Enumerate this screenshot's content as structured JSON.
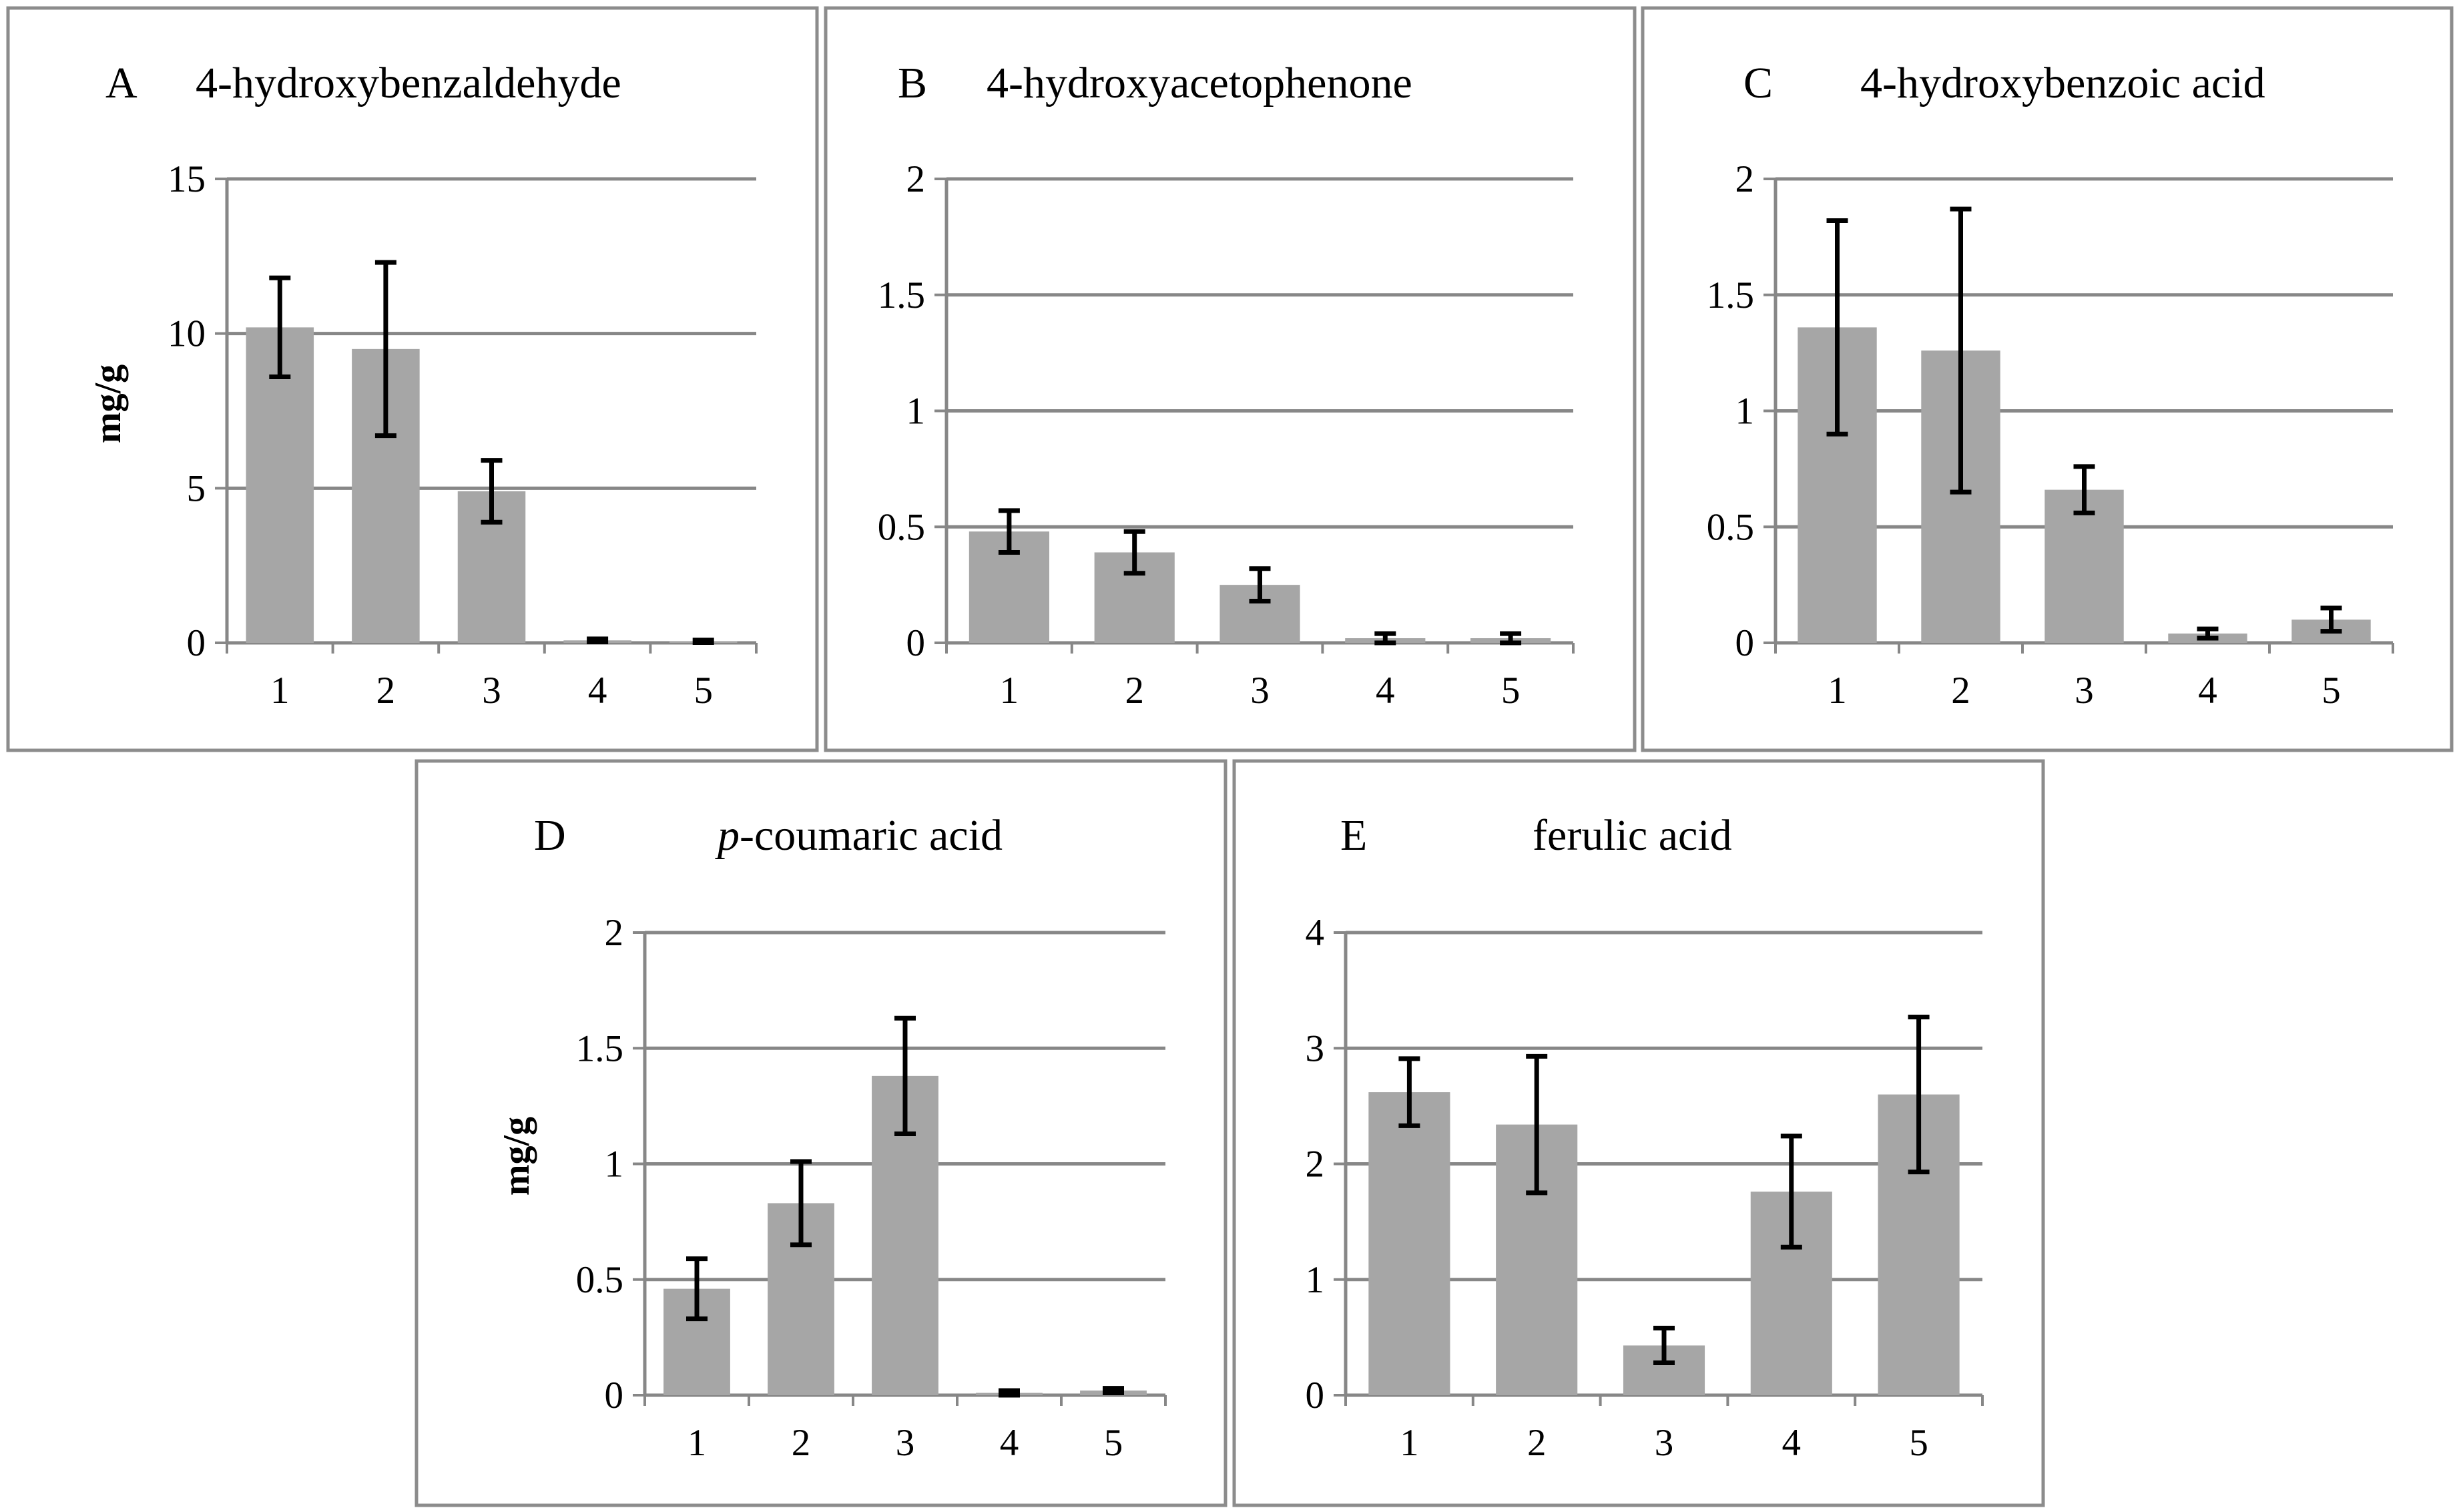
{
  "chart_data": [
    {
      "type": "bar",
      "panel_letter": "A",
      "title_prefix": "",
      "title": "4-hydroxybenzaldehyde",
      "ylabel": "mg/g",
      "xlabel": "",
      "categories": [
        "1",
        "2",
        "3",
        "4",
        "5"
      ],
      "values": [
        10.2,
        9.5,
        4.9,
        0.08,
        0.05
      ],
      "errors": [
        1.6,
        2.8,
        1.0,
        0.05,
        0.04
      ],
      "ylim": [
        0,
        15
      ],
      "yticks": [
        0,
        5,
        10,
        15
      ],
      "grid": true,
      "legend": "none"
    },
    {
      "type": "bar",
      "panel_letter": "B",
      "title_prefix": "",
      "title": "4-hydroxyacetophenone",
      "ylabel": "",
      "xlabel": "",
      "categories": [
        "1",
        "2",
        "3",
        "4",
        "5"
      ],
      "values": [
        0.48,
        0.39,
        0.25,
        0.02,
        0.02
      ],
      "errors": [
        0.09,
        0.09,
        0.07,
        0.02,
        0.02
      ],
      "ylim": [
        0,
        2
      ],
      "yticks": [
        0,
        0.5,
        1,
        1.5,
        2
      ],
      "grid": true,
      "legend": "none"
    },
    {
      "type": "bar",
      "panel_letter": "C",
      "title_prefix": "",
      "title": "4-hydroxybenzoic acid",
      "ylabel": "",
      "xlabel": "",
      "categories": [
        "1",
        "2",
        "3",
        "4",
        "5"
      ],
      "values": [
        1.36,
        1.26,
        0.66,
        0.04,
        0.1
      ],
      "errors": [
        0.46,
        0.61,
        0.1,
        0.02,
        0.05
      ],
      "ylim": [
        0,
        2
      ],
      "yticks": [
        0,
        0.5,
        1,
        1.5,
        2
      ],
      "grid": true,
      "legend": "none"
    },
    {
      "type": "bar",
      "panel_letter": "D",
      "title_prefix": "p",
      "title": "-coumaric acid",
      "ylabel": "mg/g",
      "xlabel": "",
      "categories": [
        "1",
        "2",
        "3",
        "4",
        "5"
      ],
      "values": [
        0.46,
        0.83,
        1.38,
        0.01,
        0.02
      ],
      "errors": [
        0.13,
        0.18,
        0.25,
        0.01,
        0.01
      ],
      "ylim": [
        0,
        2
      ],
      "yticks": [
        0,
        0.5,
        1,
        1.5,
        2
      ],
      "grid": true,
      "legend": "none"
    },
    {
      "type": "bar",
      "panel_letter": "E",
      "title_prefix": "",
      "title": "ferulic acid",
      "ylabel": "",
      "xlabel": "",
      "categories": [
        "1",
        "2",
        "3",
        "4",
        "5"
      ],
      "values": [
        2.62,
        2.34,
        0.43,
        1.76,
        2.6
      ],
      "errors": [
        0.29,
        0.59,
        0.15,
        0.48,
        0.67
      ],
      "ylim": [
        0,
        4
      ],
      "yticks": [
        0,
        1,
        2,
        3,
        4
      ],
      "grid": true,
      "legend": "none"
    }
  ]
}
